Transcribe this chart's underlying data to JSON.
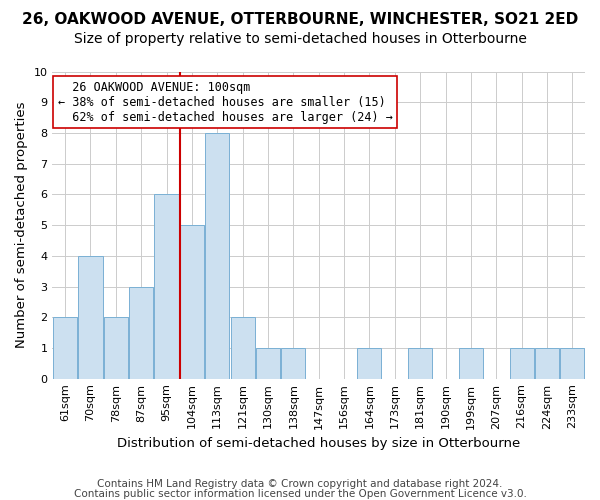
{
  "title1": "26, OAKWOOD AVENUE, OTTERBOURNE, WINCHESTER, SO21 2ED",
  "title2": "Size of property relative to semi-detached houses in Otterbourne",
  "xlabel": "Distribution of semi-detached houses by size in Otterbourne",
  "ylabel": "Number of semi-detached properties",
  "footnote1": "Contains HM Land Registry data © Crown copyright and database right 2024.",
  "footnote2": "Contains public sector information licensed under the Open Government Licence v3.0.",
  "bin_labels": [
    "61sqm",
    "70sqm",
    "78sqm",
    "87sqm",
    "95sqm",
    "104sqm",
    "113sqm",
    "121sqm",
    "130sqm",
    "138sqm",
    "147sqm",
    "156sqm",
    "164sqm",
    "173sqm",
    "181sqm",
    "190sqm",
    "199sqm",
    "207sqm",
    "216sqm",
    "224sqm",
    "233sqm"
  ],
  "counts": [
    2,
    4,
    2,
    3,
    6,
    5,
    8,
    2,
    1,
    1,
    0,
    0,
    1,
    0,
    1,
    0,
    1,
    0,
    1,
    1,
    1
  ],
  "subject_bin_index": 5,
  "subject_label": "26 OAKWOOD AVENUE: 100sqm",
  "pct_smaller": 38,
  "count_smaller": 15,
  "pct_larger": 62,
  "count_larger": 24,
  "bar_color": "#cce0f0",
  "bar_edge_color": "#7ab0d4",
  "subject_line_color": "#cc0000",
  "annotation_box_edge": "#cc0000",
  "background_color": "#ffffff",
  "ylim": [
    0,
    10
  ],
  "yticks": [
    0,
    1,
    2,
    3,
    4,
    5,
    6,
    7,
    8,
    9,
    10
  ],
  "grid_color": "#cccccc",
  "title1_fontsize": 11,
  "title2_fontsize": 10,
  "xlabel_fontsize": 9.5,
  "ylabel_fontsize": 9.5,
  "tick_fontsize": 8,
  "annotation_fontsize": 8.5,
  "footnote_fontsize": 7.5
}
